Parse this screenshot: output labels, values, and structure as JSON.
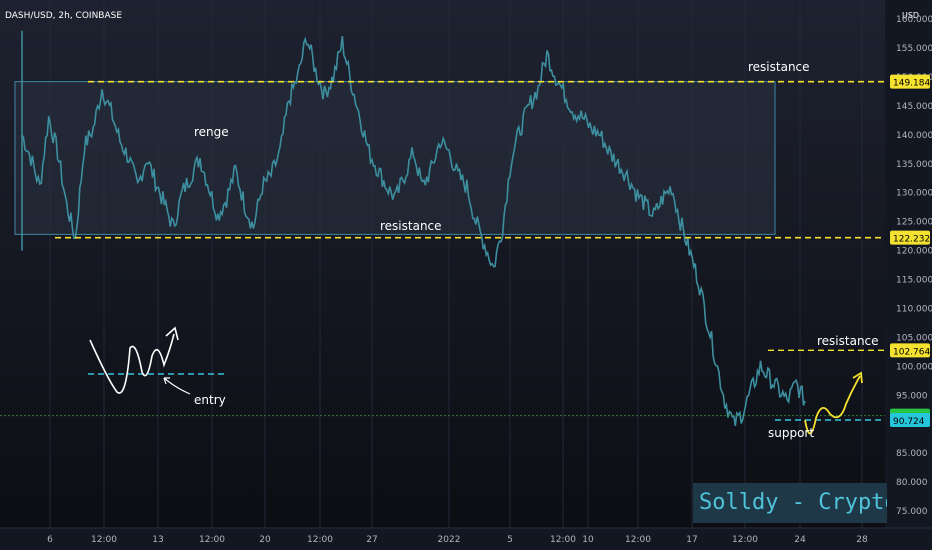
{
  "header": {
    "symbol_title": "DASH/USD, 2h, COINBASE",
    "currency": "USD"
  },
  "watermark": "Solldy - Crypto for U",
  "colors": {
    "background": "#131722",
    "candles": "#3d8f9f",
    "range_box_fill": "#2a3140",
    "range_box_border": "#3e8aa8",
    "level_line": "#f5e12f",
    "support_line": "#38c4e0",
    "green_line": "#2e7d32",
    "text": "#ffffff"
  },
  "chart_data": {
    "type": "line",
    "instrument": "DASH/USD, 2h, COINBASE",
    "y_unit": "USD",
    "ylim": [
      75,
      160
    ],
    "x_tick_labels": [
      "6",
      "12:00",
      "13",
      "12:00",
      "20",
      "12:00",
      "27",
      "2022",
      "5",
      "12:00",
      "10",
      "12:00",
      "17",
      "12:00",
      "24",
      "28"
    ],
    "y_tick_labels": [
      "75.000",
      "80.000",
      "85.000",
      "90.000",
      "95.000",
      "100.000",
      "105.000",
      "110.000",
      "115.000",
      "120.000",
      "125.000",
      "130.000",
      "135.000",
      "140.000",
      "145.000",
      "150.000",
      "155.000",
      "160.000"
    ],
    "series": [
      {
        "values": [
          140,
          136,
          131,
          143,
          137,
          128,
          122,
          138,
          141,
          148,
          144,
          139,
          136,
          131,
          136,
          132,
          128,
          124,
          130,
          133,
          136,
          131,
          126,
          129,
          134,
          128,
          124,
          131,
          133,
          137,
          146,
          150,
          157,
          151,
          147,
          150,
          156,
          149,
          143,
          137,
          134,
          131,
          129,
          133,
          137,
          131,
          134,
          139,
          137,
          133,
          131,
          125,
          121,
          117,
          124,
          136,
          141,
          145,
          148,
          154,
          150,
          147,
          144,
          143,
          141,
          140,
          137,
          135,
          133,
          130,
          128,
          126,
          129,
          131,
          125,
          120,
          115,
          108,
          101,
          94,
          90,
          92,
          96,
          100,
          98,
          96,
          94,
          97,
          94
        ]
      }
    ],
    "price_labels": [
      {
        "value": 149.184,
        "label": "149.184",
        "style": "yellow"
      },
      {
        "value": 122.232,
        "label": "122.232",
        "style": "yellow"
      },
      {
        "value": 102.764,
        "label": "102.764",
        "style": "yellow"
      },
      {
        "value": 91.47,
        "label": "91.470",
        "style": "green"
      },
      {
        "value": 90.724,
        "label": "90.724",
        "style": "cyan"
      }
    ],
    "annotations": {
      "range_label": "renge",
      "resistance_top": "resistance",
      "resistance_mid": "resistance",
      "resistance_low": "resistance",
      "support": "support",
      "entry": "entry"
    }
  }
}
